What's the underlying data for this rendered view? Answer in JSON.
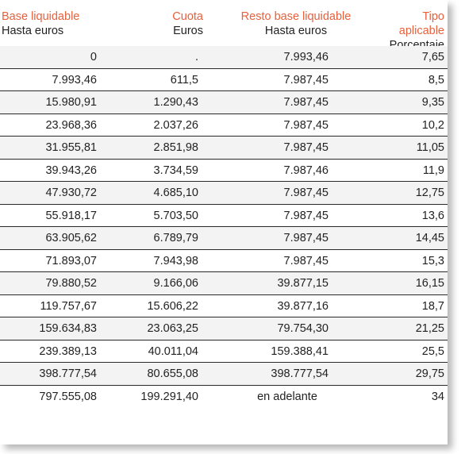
{
  "headers": {
    "col1": {
      "title": "Base liquidable",
      "sub": "Hasta euros"
    },
    "col2": {
      "title": "Cuota",
      "sub": "Euros"
    },
    "col3": {
      "title": "Resto base liquidable",
      "sub": "Hasta euros"
    },
    "col4": {
      "title": "Tipo aplicable",
      "sub": "Porcentaje"
    }
  },
  "rows": [
    {
      "base": "0",
      "cuota": ".",
      "resto": "7.993,46",
      "tipo": "7,65"
    },
    {
      "base": "7.993,46",
      "cuota": "611,5",
      "resto": "7.987,45",
      "tipo": "8,5"
    },
    {
      "base": "15.980,91",
      "cuota": "1.290,43",
      "resto": "7.987,45",
      "tipo": "9,35"
    },
    {
      "base": "23.968,36",
      "cuota": "2.037,26",
      "resto": "7.987,45",
      "tipo": "10,2"
    },
    {
      "base": "31.955,81",
      "cuota": "2.851,98",
      "resto": "7.987,45",
      "tipo": "11,05"
    },
    {
      "base": "39.943,26",
      "cuota": "3.734,59",
      "resto": "7.987,46",
      "tipo": "11,9"
    },
    {
      "base": "47.930,72",
      "cuota": "4.685,10",
      "resto": "7.987,45",
      "tipo": "12,75"
    },
    {
      "base": "55.918,17",
      "cuota": "5.703,50",
      "resto": "7.987,45",
      "tipo": "13,6"
    },
    {
      "base": "63.905,62",
      "cuota": "6.789,79",
      "resto": "7.987,45",
      "tipo": "14,45"
    },
    {
      "base": "71.893,07",
      "cuota": "7.943,98",
      "resto": "7.987,45",
      "tipo": "15,3"
    },
    {
      "base": "79.880,52",
      "cuota": "9.166,06",
      "resto": "39.877,15",
      "tipo": "16,15"
    },
    {
      "base": "119.757,67",
      "cuota": "15.606,22",
      "resto": "39.877,16",
      "tipo": "18,7"
    },
    {
      "base": "159.634,83",
      "cuota": "23.063,25",
      "resto": "79.754,30",
      "tipo": "21,25"
    },
    {
      "base": "239.389,13",
      "cuota": "40.011,04",
      "resto": "159.388,41",
      "tipo": "25,5"
    },
    {
      "base": "398.777,54",
      "cuota": "80.655,08",
      "resto": "398.777,54",
      "tipo": "29,75"
    },
    {
      "base": "797.555,08",
      "cuota": "199.291,40",
      "resto": "en adelante",
      "tipo": "34"
    }
  ],
  "colors": {
    "header_accent": "#e8603c",
    "text": "#222222",
    "row_stripe": "#f3f3f3",
    "divider": "#2a2a2a"
  }
}
